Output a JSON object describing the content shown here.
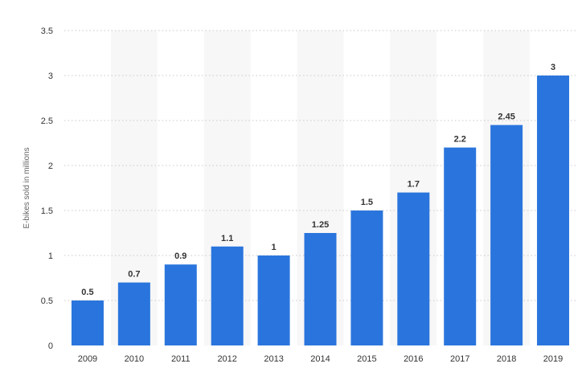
{
  "chart_data": {
    "type": "bar",
    "categories": [
      "2009",
      "2010",
      "2011",
      "2012",
      "2013",
      "2014",
      "2015",
      "2016",
      "2017",
      "2018",
      "2019"
    ],
    "values": [
      0.5,
      0.7,
      0.9,
      1.1,
      1,
      1.25,
      1.5,
      1.7,
      2.2,
      2.45,
      3
    ],
    "value_labels": [
      "0.5",
      "0.7",
      "0.9",
      "1.1",
      "1",
      "1.25",
      "1.5",
      "1.7",
      "2.2",
      "2.45",
      "3"
    ],
    "title": "",
    "xlabel": "",
    "ylabel": "E-bikes sold in millions",
    "ylim": [
      0,
      3.5
    ],
    "yticks": [
      0,
      0.5,
      1,
      1.5,
      2,
      2.5,
      3,
      3.5
    ],
    "ytick_labels": [
      "0",
      "0.5",
      "1",
      "1.5",
      "2",
      "2.5",
      "3",
      "3.5"
    ],
    "grid": true,
    "legend": "none",
    "colors": {
      "bar": "#2a75dd",
      "band": "#f7f7f7",
      "grid": "#c8c8c8",
      "text": "#333333"
    }
  }
}
